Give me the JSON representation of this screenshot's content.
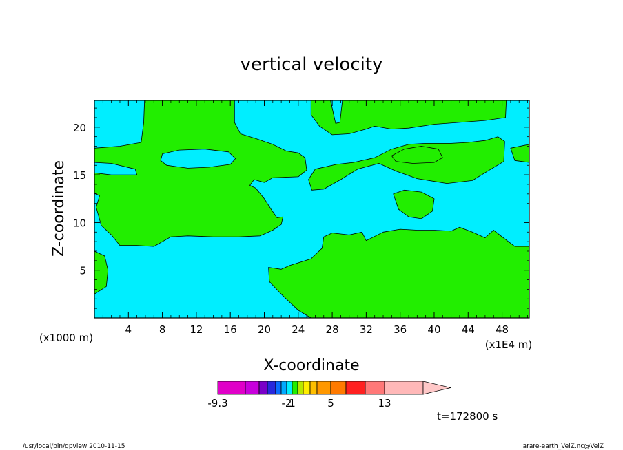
{
  "figure": {
    "footer_left": "/usr/local/bin/gpview   2010-11-15",
    "footer_right": "arare-earth_VelZ.nc@VelZ",
    "time_label": "t=172800 s"
  },
  "chart_data": {
    "type": "heatmap",
    "title": "vertical velocity",
    "xlabel": "X-coordinate",
    "ylabel": "Z-coordinate",
    "x_unit": "(x1E4 m)",
    "y_unit": "(x1000 m)",
    "xlim": [
      0,
      51.2
    ],
    "ylim": [
      0,
      22.8
    ],
    "x_ticks": [
      4,
      8,
      12,
      16,
      20,
      24,
      28,
      32,
      36,
      40,
      44,
      48
    ],
    "y_ticks": [
      5,
      10,
      15,
      20
    ],
    "grid": false,
    "background_class": {
      "range": [
        -2,
        1
      ],
      "color": "#00eeff"
    },
    "foreground_class": {
      "range": [
        1,
        5
      ],
      "color": "#22ee00"
    },
    "regions": [
      {
        "name": "upper-left positive lobe",
        "sign": "positive",
        "outline": [
          [
            0,
            17.8
          ],
          [
            3,
            18
          ],
          [
            5.5,
            18.4
          ],
          [
            5.8,
            20.5
          ],
          [
            5.9,
            22.8
          ],
          [
            16.5,
            22.8
          ],
          [
            16.5,
            20.5
          ],
          [
            17.2,
            19.3
          ],
          [
            19,
            18.8
          ],
          [
            21,
            18.2
          ],
          [
            22.6,
            17.5
          ],
          [
            24,
            17.3
          ],
          [
            24.8,
            16.8
          ],
          [
            25,
            15.5
          ],
          [
            24,
            14.8
          ],
          [
            21,
            14.7
          ],
          [
            20,
            14.2
          ],
          [
            18.8,
            14.5
          ],
          [
            18.3,
            13.9
          ],
          [
            19,
            13.6
          ],
          [
            20,
            12.5
          ],
          [
            20.8,
            11.4
          ],
          [
            21.5,
            10.5
          ],
          [
            22.2,
            10.6
          ],
          [
            22,
            9.8
          ],
          [
            21,
            9.2
          ],
          [
            19.5,
            8.6
          ],
          [
            17,
            8.5
          ],
          [
            14,
            8.5
          ],
          [
            11,
            8.6
          ],
          [
            9,
            8.5
          ],
          [
            7,
            7.5
          ],
          [
            5,
            7.6
          ],
          [
            3,
            7.6
          ],
          [
            2,
            8.7
          ],
          [
            0.8,
            9.7
          ],
          [
            0.2,
            11.6
          ],
          [
            0.6,
            12.8
          ],
          [
            0,
            13.1
          ],
          [
            0,
            15.2
          ],
          [
            2,
            15
          ],
          [
            5,
            15
          ],
          [
            4.8,
            15.6
          ],
          [
            2,
            16.2
          ],
          [
            0,
            16.3
          ]
        ]
      },
      {
        "name": "upper-left cyan hole",
        "sign": "negative",
        "outline": [
          [
            7.8,
            16.5
          ],
          [
            8.5,
            16
          ],
          [
            11,
            15.7
          ],
          [
            13.5,
            15.8
          ],
          [
            16,
            16.1
          ],
          [
            16.6,
            16.7
          ],
          [
            15.8,
            17.4
          ],
          [
            13,
            17.7
          ],
          [
            10,
            17.6
          ],
          [
            8,
            17.2
          ]
        ]
      },
      {
        "name": "left edge lobe",
        "sign": "positive",
        "outline": [
          [
            0,
            7
          ],
          [
            1.2,
            6.5
          ],
          [
            1.6,
            5
          ],
          [
            1.4,
            3.3
          ],
          [
            0,
            2.5
          ]
        ]
      },
      {
        "name": "bottom positive lobe",
        "sign": "positive",
        "outline": [
          [
            20.5,
            5.3
          ],
          [
            22,
            5.1
          ],
          [
            23,
            5.5
          ],
          [
            25.5,
            6.2
          ],
          [
            26.8,
            7.3
          ],
          [
            27,
            8.5
          ],
          [
            28,
            8.9
          ],
          [
            30,
            8.7
          ],
          [
            31.5,
            9
          ],
          [
            32,
            8.1
          ],
          [
            34,
            9
          ],
          [
            36,
            9.3
          ],
          [
            38,
            9.2
          ],
          [
            40,
            9.2
          ],
          [
            42,
            9.1
          ],
          [
            43,
            9.5
          ],
          [
            44.5,
            9
          ],
          [
            46,
            8.4
          ],
          [
            47,
            9.2
          ],
          [
            48,
            8.5
          ],
          [
            49.5,
            7.5
          ],
          [
            51.2,
            7.5
          ],
          [
            51.2,
            0
          ],
          [
            25.5,
            0
          ],
          [
            24,
            0.8
          ],
          [
            22,
            2.5
          ],
          [
            20.6,
            3.8
          ]
        ]
      },
      {
        "name": "upper-right positive band",
        "sign": "positive",
        "outline": [
          [
            25.2,
            14.5
          ],
          [
            26,
            15.6
          ],
          [
            28.5,
            16.1
          ],
          [
            30.5,
            16.3
          ],
          [
            33,
            16.8
          ],
          [
            35,
            17.7
          ],
          [
            37,
            18.2
          ],
          [
            39,
            18.3
          ],
          [
            42,
            18.3
          ],
          [
            44,
            18.4
          ],
          [
            46,
            18.6
          ],
          [
            47.5,
            19
          ],
          [
            48.3,
            18.5
          ],
          [
            48.2,
            16.4
          ],
          [
            46.5,
            15.5
          ],
          [
            44.5,
            14.4
          ],
          [
            41.5,
            14.1
          ],
          [
            38,
            14.6
          ],
          [
            35.5,
            15.4
          ],
          [
            33.5,
            16.2
          ],
          [
            31,
            15.6
          ],
          [
            29,
            14.5
          ],
          [
            27,
            13.5
          ],
          [
            25.6,
            13.4
          ]
        ]
      },
      {
        "name": "top-right positive band",
        "sign": "positive",
        "outline": [
          [
            25.5,
            22.8
          ],
          [
            48.5,
            22.8
          ],
          [
            48.4,
            21
          ],
          [
            46,
            20.7
          ],
          [
            43,
            20.5
          ],
          [
            40,
            20.3
          ],
          [
            37,
            19.9
          ],
          [
            35,
            19.8
          ],
          [
            33,
            20.1
          ],
          [
            32,
            19.8
          ],
          [
            30,
            19.3
          ],
          [
            28,
            19.2
          ],
          [
            26.5,
            20.1
          ],
          [
            25.5,
            21.3
          ]
        ]
      },
      {
        "name": "cyan gap in top-right band",
        "sign": "negative",
        "outline": [
          [
            27.8,
            22.8
          ],
          [
            29.2,
            22.8
          ],
          [
            28.9,
            20.5
          ],
          [
            28.4,
            20.4
          ]
        ]
      },
      {
        "name": "right upper lobe",
        "sign": "positive",
        "outline": [
          [
            49,
            17.8
          ],
          [
            51.2,
            18.2
          ],
          [
            51.2,
            16.3
          ],
          [
            49.5,
            16.5
          ]
        ]
      },
      {
        "name": "mid-right small lobe",
        "sign": "positive",
        "outline": [
          [
            35.2,
            13
          ],
          [
            36.5,
            13.4
          ],
          [
            38.5,
            13.2
          ],
          [
            40,
            12.5
          ],
          [
            39.8,
            11.2
          ],
          [
            38.5,
            10.4
          ],
          [
            37,
            10.6
          ],
          [
            35.8,
            11.4
          ]
        ]
      },
      {
        "name": "upper center lobe",
        "sign": "positive",
        "outline": [
          [
            35,
            17
          ],
          [
            36.5,
            17.7
          ],
          [
            38.5,
            18
          ],
          [
            40.5,
            17.7
          ],
          [
            41,
            16.8
          ],
          [
            40,
            16.3
          ],
          [
            37.5,
            16.2
          ],
          [
            35.5,
            16.4
          ]
        ]
      }
    ],
    "color_scale": {
      "segments": [
        {
          "from": -9.3,
          "to": -7,
          "color": "#e000c8"
        },
        {
          "from": -7,
          "to": -5,
          "color": "#c800dc"
        },
        {
          "from": -5,
          "to": -4,
          "color": "#7a00c8"
        },
        {
          "from": -4,
          "to": -3,
          "color": "#2828dc"
        },
        {
          "from": -3,
          "to": -2.5,
          "color": "#0a6eff"
        },
        {
          "from": -2.5,
          "to": -2,
          "color": "#00aaff"
        },
        {
          "from": -2,
          "to": 1,
          "color": "#00eeff"
        },
        {
          "from": 1,
          "to": 1.5,
          "color": "#22ee00"
        },
        {
          "from": 1.5,
          "to": 2,
          "color": "#b8e800"
        },
        {
          "from": 2,
          "to": 3,
          "color": "#ffee00"
        },
        {
          "from": 3,
          "to": 4,
          "color": "#ffbf00"
        },
        {
          "from": 4,
          "to": 5,
          "color": "#ff9800"
        },
        {
          "from": 5,
          "to": 7,
          "color": "#ff7a00"
        },
        {
          "from": 7,
          "to": 9,
          "color": "#ff2020"
        },
        {
          "from": 9,
          "to": 13,
          "color": "#ff7878"
        },
        {
          "from": 13,
          "to": 18,
          "color": "#ffb8b8"
        },
        {
          "from": 18,
          "to": 22,
          "color": "#ffc8c8"
        }
      ],
      "tick_labels": [
        "-9.3",
        "-2",
        "1",
        "5",
        "13"
      ]
    }
  }
}
